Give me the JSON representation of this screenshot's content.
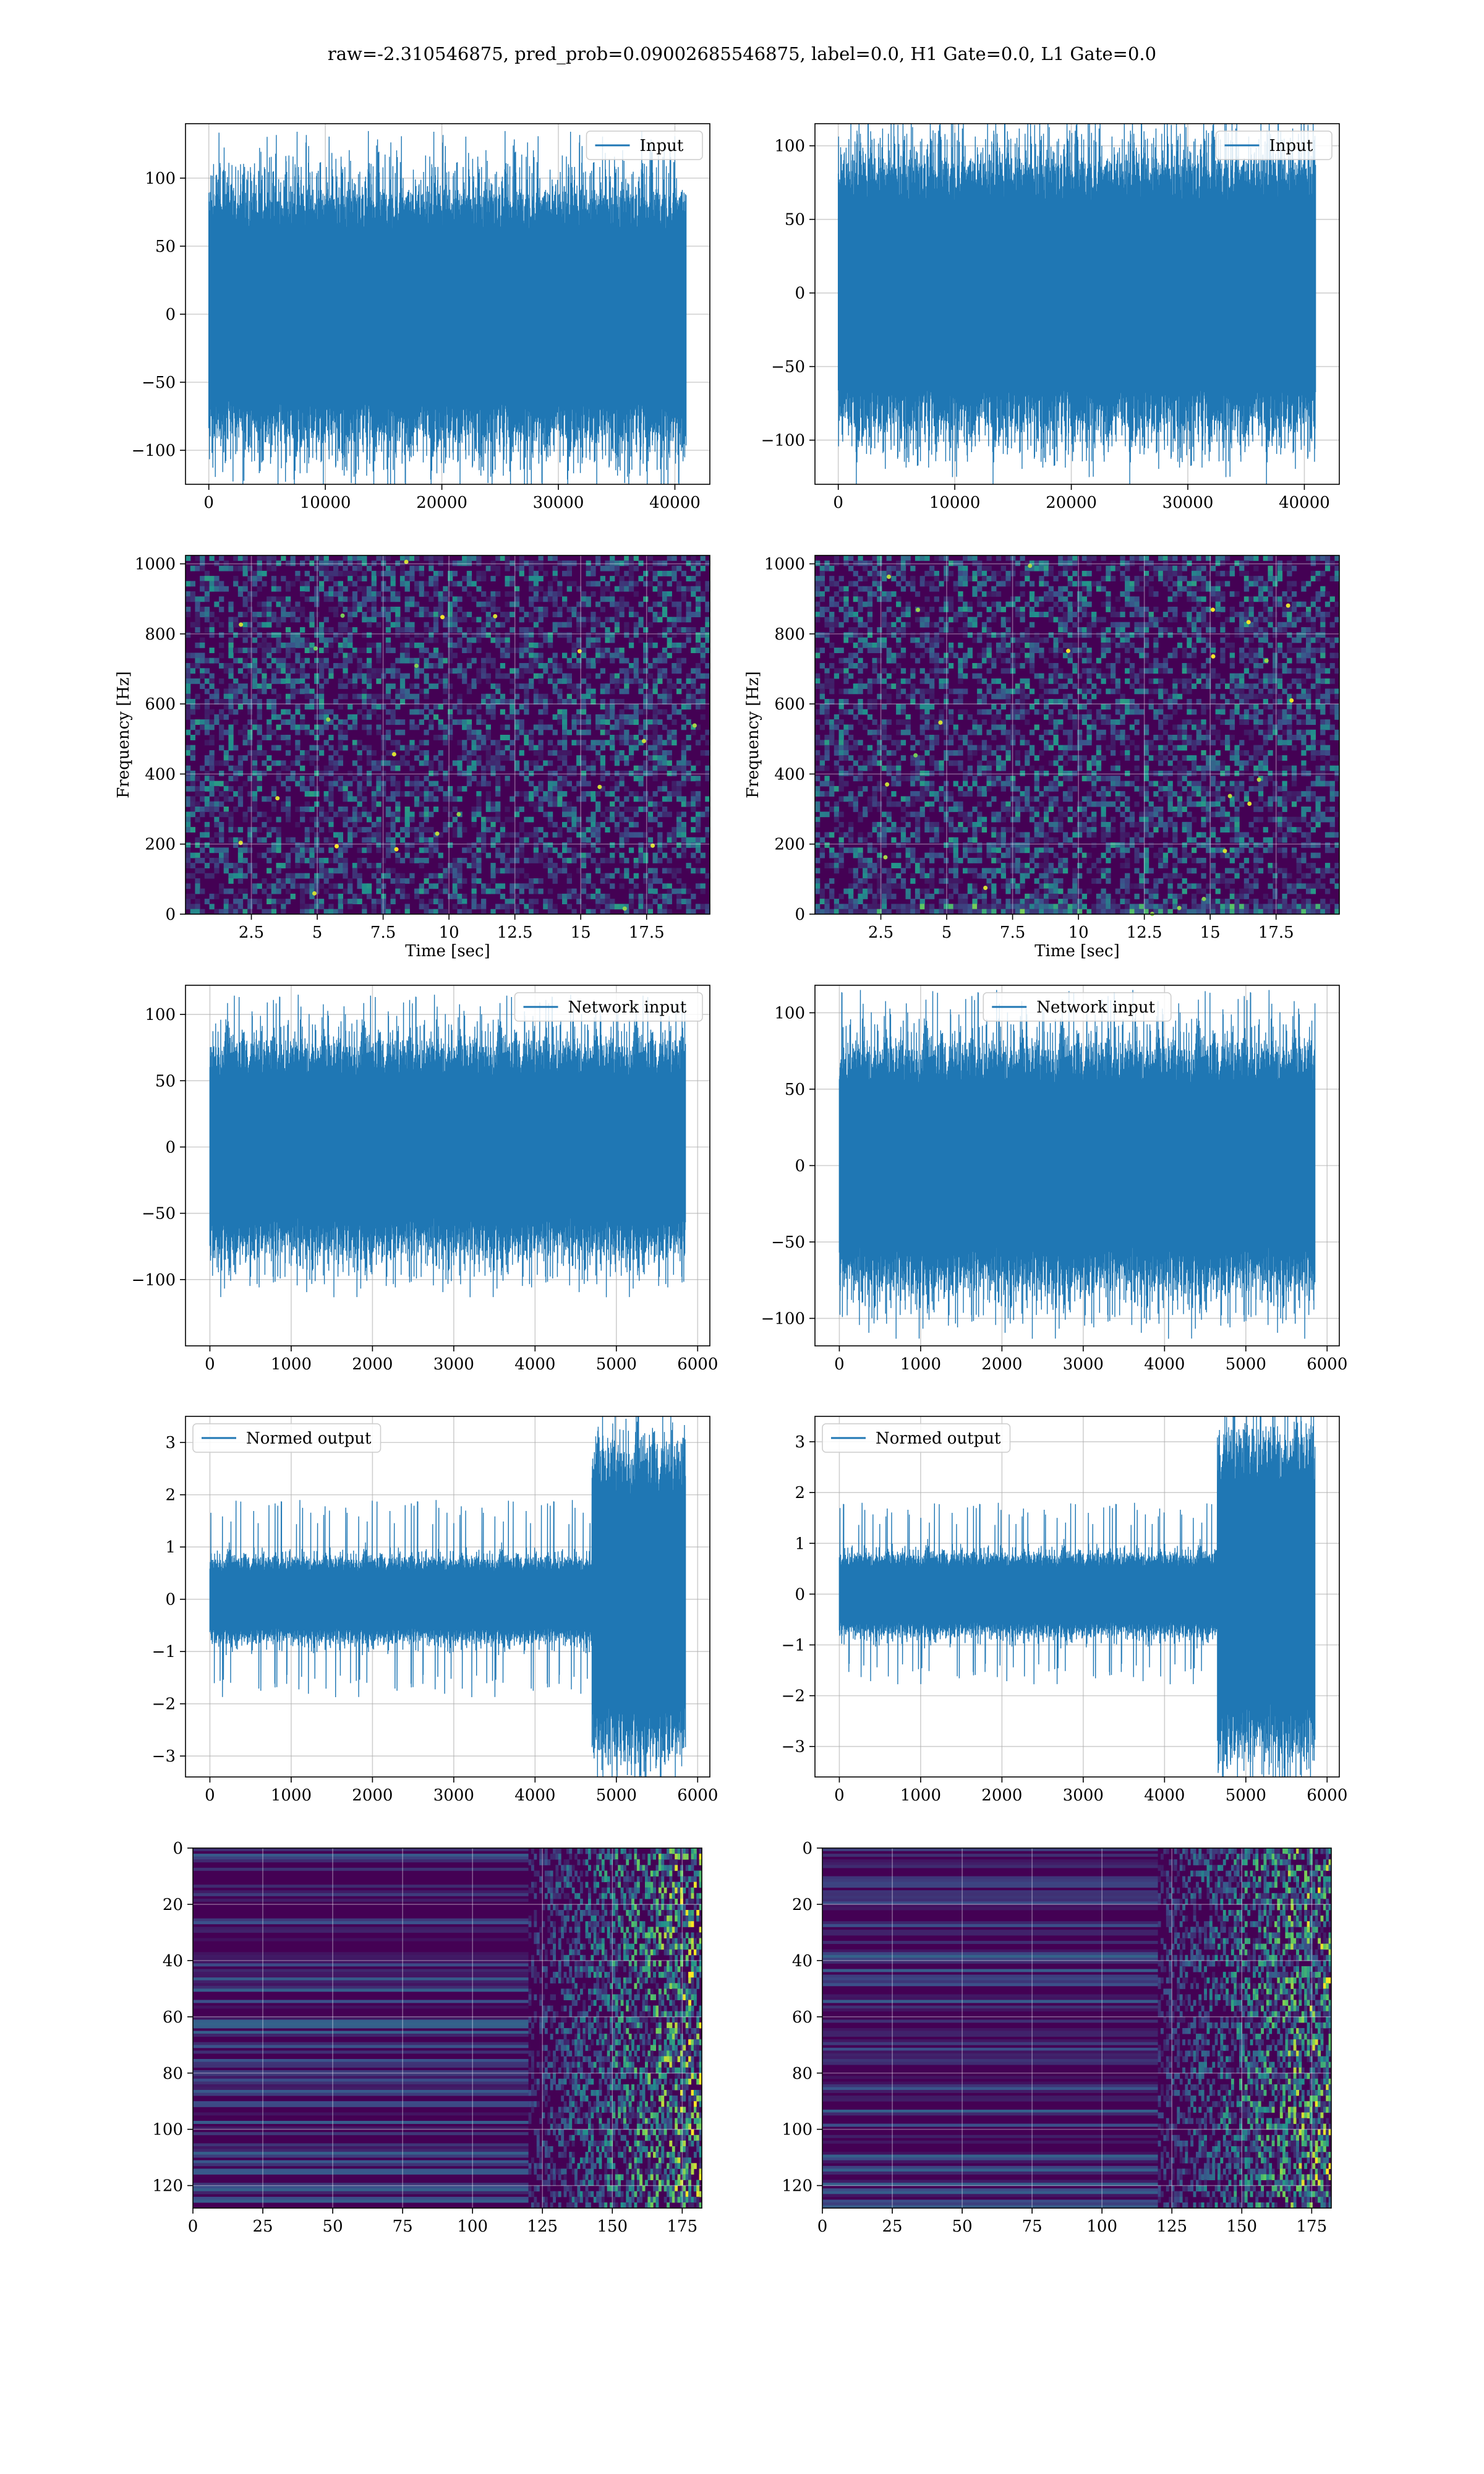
{
  "figure": {
    "title": "raw=-2.310546875, pred_prob=0.09002685546875, label=0.0, H1 Gate=0.0, L1 Gate=0.0"
  },
  "colors": {
    "signal": "#1f77b4",
    "grid": "#b0b0b0",
    "spectrogram_low": "#440154",
    "spectrogram_mid": "#21918c",
    "spectrogram_high": "#fde725"
  },
  "chart_data": [
    {
      "id": "h1-input",
      "type": "line",
      "series": [
        {
          "name": "Input",
          "amplitude": 65,
          "noise_peak": 135,
          "x_end": 40960
        }
      ],
      "xlim": [
        -2000,
        43000
      ],
      "ylim": [
        -125,
        140
      ],
      "xticks": [
        0,
        10000,
        20000,
        30000,
        40000
      ],
      "yticks": [
        100,
        50,
        0,
        -50,
        -100
      ],
      "legend": "top-right",
      "grid": true
    },
    {
      "id": "l1-input",
      "type": "line",
      "series": [
        {
          "name": "Input",
          "amplitude": 65,
          "noise_peak": 120,
          "x_end": 40960
        }
      ],
      "xlim": [
        -2000,
        43000
      ],
      "ylim": [
        -130,
        115
      ],
      "xticks": [
        0,
        10000,
        20000,
        30000,
        40000
      ],
      "yticks": [
        100,
        50,
        0,
        -50,
        -100
      ],
      "legend": "top-right",
      "grid": true
    },
    {
      "id": "h1-spectrogram",
      "type": "heatmap",
      "xlim": [
        0,
        19.9
      ],
      "ylim": [
        0,
        1024
      ],
      "xticks": [
        2.5,
        5.0,
        7.5,
        10.0,
        12.5,
        15.0,
        17.5
      ],
      "yticks": [
        0,
        200,
        400,
        600,
        800,
        1000
      ],
      "xlabel": "Time [sec]",
      "ylabel": "Frequency [Hz]",
      "grid": true
    },
    {
      "id": "l1-spectrogram",
      "type": "heatmap",
      "xlim": [
        0,
        19.9
      ],
      "ylim": [
        0,
        1024
      ],
      "xticks": [
        2.5,
        5.0,
        7.5,
        10.0,
        12.5,
        15.0,
        17.5
      ],
      "yticks": [
        0,
        200,
        400,
        600,
        800,
        1000
      ],
      "xlabel": "Time [sec]",
      "ylabel": "Frequency [Hz]",
      "grid": true
    },
    {
      "id": "h1-network-input",
      "type": "line",
      "series": [
        {
          "name": "Network input",
          "amplitude": 55,
          "noise_peak": 115,
          "x_end": 5850
        }
      ],
      "xlim": [
        -300,
        6150
      ],
      "ylim": [
        -150,
        122
      ],
      "xticks": [
        0,
        1000,
        2000,
        3000,
        4000,
        5000,
        6000
      ],
      "yticks": [
        100,
        50,
        0,
        -50,
        -100
      ],
      "legend": "top-right",
      "grid": true
    },
    {
      "id": "l1-network-input",
      "type": "line",
      "series": [
        {
          "name": "Network input",
          "amplitude": 55,
          "noise_peak": 115,
          "x_end": 5850
        }
      ],
      "xlim": [
        -300,
        6150
      ],
      "ylim": [
        -118,
        118
      ],
      "xticks": [
        0,
        1000,
        2000,
        3000,
        4000,
        5000,
        6000
      ],
      "yticks": [
        100,
        50,
        0,
        -50,
        -100
      ],
      "legend": "top-center",
      "grid": true
    },
    {
      "id": "h1-normed-output",
      "type": "line",
      "series": [
        {
          "name": "Normed output",
          "amplitude": 0.55,
          "noise_peak": 1.9,
          "x_end": 5850,
          "burst_start": 4700,
          "burst_peak": 3.2
        }
      ],
      "xlim": [
        -300,
        6150
      ],
      "ylim": [
        -3.4,
        3.5
      ],
      "xticks": [
        0,
        1000,
        2000,
        3000,
        4000,
        5000,
        6000
      ],
      "yticks": [
        3,
        2,
        1,
        0,
        -1,
        -2,
        -3
      ],
      "legend": "top-left",
      "grid": true
    },
    {
      "id": "l1-normed-output",
      "type": "line",
      "series": [
        {
          "name": "Normed output",
          "amplitude": 0.55,
          "noise_peak": 1.8,
          "x_end": 5850,
          "burst_start": 4650,
          "burst_peak": 3.3
        }
      ],
      "xlim": [
        -300,
        6150
      ],
      "ylim": [
        -3.6,
        3.5
      ],
      "xticks": [
        0,
        1000,
        2000,
        3000,
        4000,
        5000,
        6000
      ],
      "yticks": [
        3,
        2,
        1,
        0,
        -1,
        -2,
        -3
      ],
      "legend": "top-left",
      "grid": true
    },
    {
      "id": "h1-feature-map",
      "type": "heatmap",
      "xlim": [
        0,
        182
      ],
      "ylim": [
        128,
        0
      ],
      "xticks": [
        0,
        25,
        50,
        75,
        100,
        125,
        150,
        175
      ],
      "yticks": [
        0,
        20,
        40,
        60,
        80,
        100,
        120
      ],
      "active_from": 120,
      "grid": true
    },
    {
      "id": "l1-feature-map",
      "type": "heatmap",
      "xlim": [
        0,
        182
      ],
      "ylim": [
        128,
        0
      ],
      "xticks": [
        0,
        25,
        50,
        75,
        100,
        125,
        150,
        175
      ],
      "yticks": [
        0,
        20,
        40,
        60,
        80,
        100,
        120
      ],
      "active_from": 120,
      "grid": true
    }
  ]
}
